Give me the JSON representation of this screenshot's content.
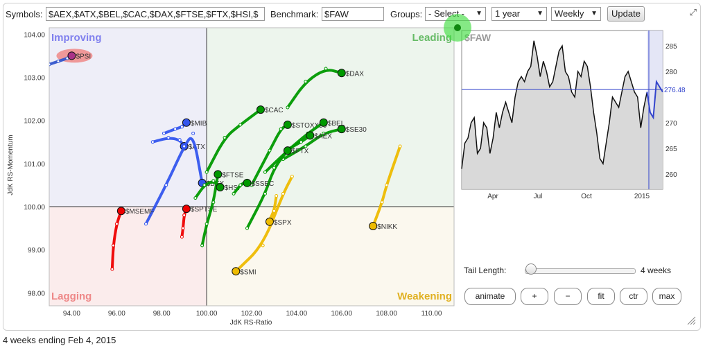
{
  "toolbar": {
    "symbols_label": "Symbols:",
    "symbols_value": "$AEX,$ATX,$BEL,$CAC,$DAX,$FTSE,$FTX,$HSI,$",
    "benchmark_label": "Benchmark:",
    "benchmark_value": "$FAW",
    "groups_label": "Groups:",
    "groups_value": "- Select -",
    "period_value": "1 year",
    "frequency_value": "Weekly",
    "update_label": "Update"
  },
  "controls": {
    "tail_length_label": "Tail Length:",
    "tail_length_value": "4 weeks",
    "tail_length_fraction": 0.05,
    "animate": "animate",
    "plus": "+",
    "minus": "−",
    "fit": "fit",
    "ctr": "ctr",
    "max": "max"
  },
  "caption": "4 weeks ending Feb 4, 2015",
  "chart_data": [
    {
      "type": "scatter",
      "name": "Relative Rotation Graph",
      "xlabel": "JdK RS-Ratio",
      "ylabel": "JdK RS-Momentum",
      "xlim": [
        93,
        111
      ],
      "ylim": [
        97.7,
        104.15
      ],
      "xticks": [
        94,
        96,
        98,
        100,
        102,
        104,
        106,
        108,
        110
      ],
      "xtick_labels": [
        "94.00",
        "96.00",
        "98.00",
        "100.00",
        "102.00",
        "104.00",
        "106.00",
        "108.00",
        "110.00"
      ],
      "yticks": [
        98,
        99,
        100,
        101,
        102,
        103,
        104
      ],
      "ytick_labels": [
        "98.00",
        "99.00",
        "100.00",
        "101.00",
        "102.00",
        "103.00",
        "104.00"
      ],
      "quadrants": [
        {
          "label": "Improving",
          "color": "#8080ee",
          "fill": "#eeeef8"
        },
        {
          "label": "Leading",
          "color": "#66bb66",
          "fill": "#edf5ed"
        },
        {
          "label": "Lagging",
          "color": "#ee8888",
          "fill": "#fbecec"
        },
        {
          "label": "Weakening",
          "color": "#e0b020",
          "fill": "#fbf8ee"
        }
      ],
      "series": [
        {
          "name": "$PSI",
          "color": "#3355cc",
          "head_color": "#aa3388",
          "highlight": true,
          "points": [
            [
              93,
              103.3
            ],
            [
              93.4,
              103.37
            ],
            [
              93.8,
              103.44
            ],
            [
              94.0,
              103.5
            ]
          ]
        },
        {
          "name": "$MIB",
          "color": "#3355ee",
          "head_color": "#3355ee",
          "points": [
            [
              98.1,
              101.7
            ],
            [
              98.6,
              101.8
            ],
            [
              98.9,
              101.85
            ],
            [
              99.1,
              101.95
            ]
          ]
        },
        {
          "name": "$ATX",
          "color": "#3355ee",
          "head_color": "#3355ee",
          "points": [
            [
              97.6,
              101.5
            ],
            [
              98.3,
              101.6
            ],
            [
              98.8,
              101.55
            ],
            [
              99.0,
              101.4
            ]
          ]
        },
        {
          "name": "$BEX",
          "color": "#3355ee",
          "head_color": "#3355ee",
          "points": [
            [
              97.3,
              99.6
            ],
            [
              98.2,
              100.5
            ],
            [
              99.0,
              101.4
            ],
            [
              99.4,
              101.7
            ],
            [
              99.8,
              100.55
            ]
          ]
        },
        {
          "name": "$MSEMF",
          "color": "#ee0000",
          "head_color": "#ee0000",
          "points": [
            [
              95.8,
              98.55
            ],
            [
              95.85,
              99.1
            ],
            [
              96.0,
              99.6
            ],
            [
              96.2,
              99.9
            ]
          ]
        },
        {
          "name": "$SPTSE",
          "color": "#ee0000",
          "head_color": "#ee0000",
          "points": [
            [
              98.9,
              99.3
            ],
            [
              98.95,
              99.5
            ],
            [
              99.0,
              99.8
            ],
            [
              99.1,
              99.95
            ]
          ]
        },
        {
          "name": "$SMI",
          "color": "#eebb00",
          "head_color": "#eebb00",
          "points": [
            [
              103.8,
              100.7
            ],
            [
              103.4,
              100.3
            ],
            [
              102.5,
              99.1
            ],
            [
              101.3,
              98.5
            ]
          ]
        },
        {
          "name": "$SPX",
          "color": "#eebb00",
          "head_color": "#eebb00",
          "points": [
            [
              103.1,
              100.25
            ],
            [
              103.0,
              99.9
            ],
            [
              102.8,
              99.7
            ],
            [
              102.8,
              99.65
            ]
          ]
        },
        {
          "name": "$NIKK",
          "color": "#eebb00",
          "head_color": "#eebb00",
          "points": [
            [
              108.6,
              101.4
            ],
            [
              108.0,
              100.5
            ],
            [
              107.8,
              100.1
            ],
            [
              107.4,
              99.55
            ]
          ]
        },
        {
          "name": "$DAX",
          "color": "#009900",
          "head_color": "#009900",
          "points": [
            [
              103.6,
              102.3
            ],
            [
              104.4,
              102.9
            ],
            [
              105.3,
              103.2
            ],
            [
              106.0,
              103.1
            ]
          ]
        },
        {
          "name": "$CAC",
          "color": "#009900",
          "head_color": "#009900",
          "points": [
            [
              100.0,
              100.8
            ],
            [
              100.8,
              101.6
            ],
            [
              101.5,
              101.9
            ],
            [
              102.4,
              102.25
            ]
          ]
        },
        {
          "name": "$STOXX50",
          "color": "#009900",
          "head_color": "#009900",
          "points": [
            [
              102.0,
              100.5
            ],
            [
              102.8,
              101.3
            ],
            [
              103.3,
              101.8
            ],
            [
              103.6,
              101.9
            ]
          ]
        },
        {
          "name": "$BEL",
          "color": "#009900",
          "head_color": "#009900",
          "points": [
            [
              102.6,
              100.8
            ],
            [
              103.6,
              101.3
            ],
            [
              104.5,
              101.7
            ],
            [
              105.2,
              101.95
            ]
          ]
        },
        {
          "name": "$SE30",
          "color": "#009900",
          "head_color": "#009900",
          "points": [
            [
              103.4,
              101.1
            ],
            [
              104.4,
              101.4
            ],
            [
              105.2,
              101.7
            ],
            [
              106.0,
              101.8
            ]
          ]
        },
        {
          "name": "$AEX",
          "color": "#009900",
          "head_color": "#009900",
          "points": [
            [
              103.5,
              101.3
            ],
            [
              104.2,
              101.5
            ],
            [
              104.6,
              101.65
            ]
          ]
        },
        {
          "name": "$FTX",
          "color": "#009900",
          "head_color": "#009900",
          "points": [
            [
              101.8,
              99.5
            ],
            [
              102.6,
              100.3
            ],
            [
              103.0,
              100.9
            ],
            [
              103.6,
              101.3
            ]
          ]
        },
        {
          "name": "$FTSE",
          "color": "#009900",
          "head_color": "#009900",
          "points": [
            [
              99.8,
              99.1
            ],
            [
              100.0,
              99.6
            ],
            [
              100.3,
              100.1
            ],
            [
              100.5,
              100.75
            ]
          ]
        },
        {
          "name": "$HSI",
          "color": "#009900",
          "head_color": "#009900",
          "points": [
            [
              99.5,
              100.2
            ],
            [
              99.9,
              100.5
            ],
            [
              100.3,
              100.6
            ],
            [
              100.6,
              100.45
            ]
          ]
        },
        {
          "name": "$SSEC",
          "color": "#009900",
          "head_color": "#009900",
          "points": [
            [
              101.2,
              100.3
            ],
            [
              101.5,
              100.5
            ],
            [
              101.8,
              100.6
            ],
            [
              101.8,
              100.55
            ]
          ]
        }
      ]
    },
    {
      "type": "line",
      "name": "$FAW",
      "color": "#111111",
      "recent_color": "#3344cc",
      "xlim": [
        0,
        58
      ],
      "ylim": [
        257,
        288
      ],
      "yticks": [
        260,
        265,
        270,
        275,
        280,
        285
      ],
      "ytick_labels": [
        "260",
        "265",
        "270",
        "275",
        "280",
        "285"
      ],
      "xtick_labels": [
        {
          "label": "Apr",
          "x": 9
        },
        {
          "label": "Jul",
          "x": 22
        },
        {
          "label": "Oct",
          "x": 36
        },
        {
          "label": "2015",
          "x": 52
        }
      ],
      "current_value": 276.48,
      "current_label": "276.48",
      "marker_x": 54,
      "highlight_from": 53.5,
      "values": [
        261,
        266,
        267,
        270,
        271,
        264,
        265,
        270,
        269,
        264,
        267,
        272,
        269,
        272,
        274,
        272,
        270,
        275,
        278,
        279,
        278,
        280,
        281,
        286,
        283,
        279,
        282,
        280,
        277,
        278,
        281,
        284,
        285,
        280,
        279,
        276,
        275,
        280,
        279,
        282,
        281,
        277,
        272,
        268,
        263,
        262,
        266,
        270,
        275,
        274,
        273,
        276,
        279,
        280,
        278,
        276,
        275,
        269,
        273,
        276,
        272,
        271,
        278,
        277,
        276
      ]
    }
  ]
}
